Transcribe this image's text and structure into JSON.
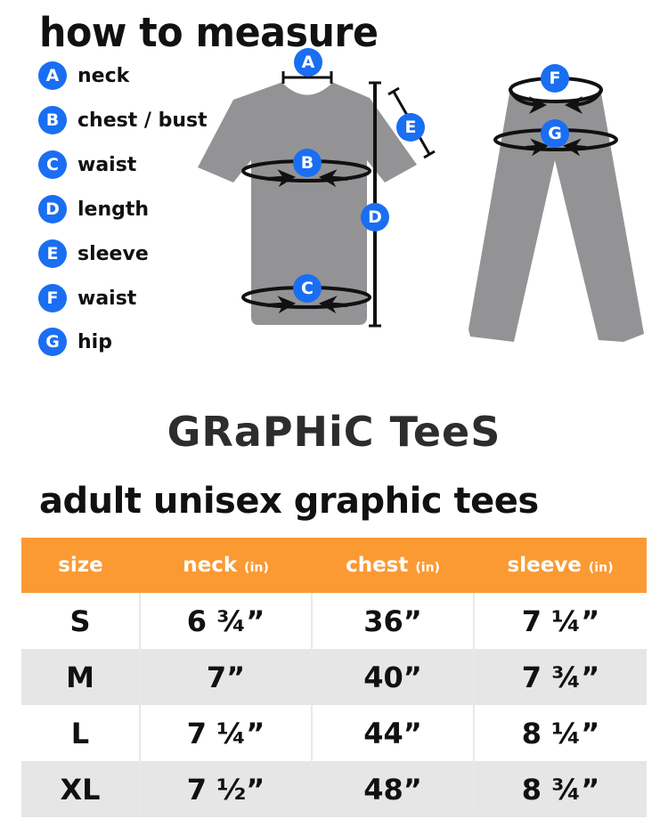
{
  "title": "how to measure",
  "legend": [
    {
      "letter": "A",
      "label": "neck"
    },
    {
      "letter": "B",
      "label": "chest / bust"
    },
    {
      "letter": "C",
      "label": "waist"
    },
    {
      "letter": "D",
      "label": "length"
    },
    {
      "letter": "E",
      "label": "sleeve"
    },
    {
      "letter": "F",
      "label": "waist"
    },
    {
      "letter": "G",
      "label": "hip"
    }
  ],
  "brand": "GRaPHiC TeeS",
  "subtitle": "adult unisex graphic tees",
  "colors": {
    "accent": "#fb9a33",
    "badge": "#1a6ef2",
    "garment": "#939395",
    "alt_row": "#e6e6e6"
  },
  "table": {
    "headers": [
      {
        "label": "size",
        "unit": ""
      },
      {
        "label": "neck",
        "unit": "(in)"
      },
      {
        "label": "chest",
        "unit": "(in)"
      },
      {
        "label": "sleeve",
        "unit": "(in)"
      }
    ],
    "rows": [
      [
        "S",
        "6 ¾”",
        "36”",
        "7 ¼”"
      ],
      [
        "M",
        "7”",
        "40”",
        "7 ¾”"
      ],
      [
        "L",
        "7 ¼”",
        "44”",
        "8 ¼”"
      ],
      [
        "XL",
        "7 ½”",
        "48”",
        "8 ¾”"
      ]
    ]
  }
}
